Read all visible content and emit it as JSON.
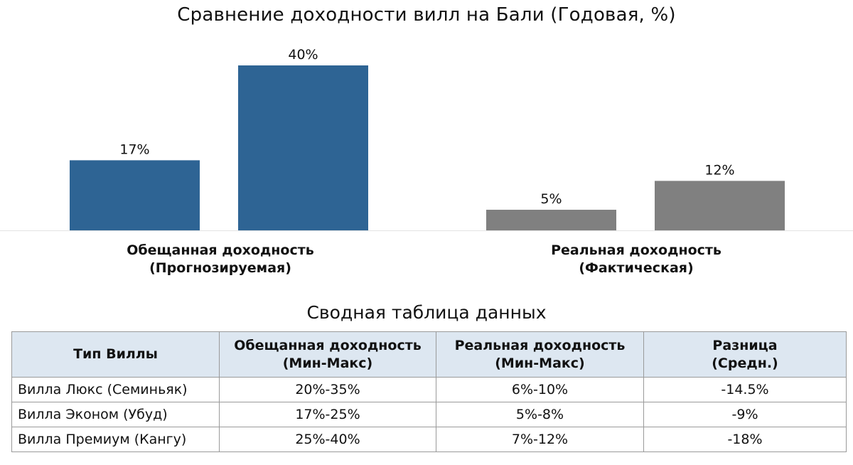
{
  "chart_data": {
    "type": "bar",
    "title": "Сравнение доходности вилл на Бали (Годовая, %)",
    "categories": [
      [
        "Обещанная доходность",
        "(Прогнозируемая)"
      ],
      [
        "Реальная доходность",
        "(Фактическая)"
      ]
    ],
    "bars": [
      {
        "group": 0,
        "value": 17,
        "label": "17%",
        "color": "#2e6494"
      },
      {
        "group": 0,
        "value": 40,
        "label": "40%",
        "color": "#2e6494"
      },
      {
        "group": 1,
        "value": 5,
        "label": "5%",
        "color": "#808080"
      },
      {
        "group": 1,
        "value": 12,
        "label": "12%",
        "color": "#808080"
      }
    ],
    "ylim": [
      0,
      40
    ],
    "xlabel": "",
    "ylabel": "",
    "grid": false
  },
  "table": {
    "title": "Сводная таблица данных",
    "headers": [
      [
        "Тип Виллы"
      ],
      [
        "Обещанная доходность",
        "(Мин-Макс)"
      ],
      [
        "Реальная доходность",
        "(Мин-Макс)"
      ],
      [
        "Разница",
        "(Средн.)"
      ]
    ],
    "rows": [
      [
        "Вилла Люкс (Семиньяк)",
        "20%-35%",
        "6%-10%",
        "-14.5%"
      ],
      [
        "Вилла Эконом (Убуд)",
        "17%-25%",
        "5%-8%",
        "-9%"
      ],
      [
        "Вилла Премиум (Кангу)",
        "25%-40%",
        "7%-12%",
        "-18%"
      ]
    ]
  }
}
